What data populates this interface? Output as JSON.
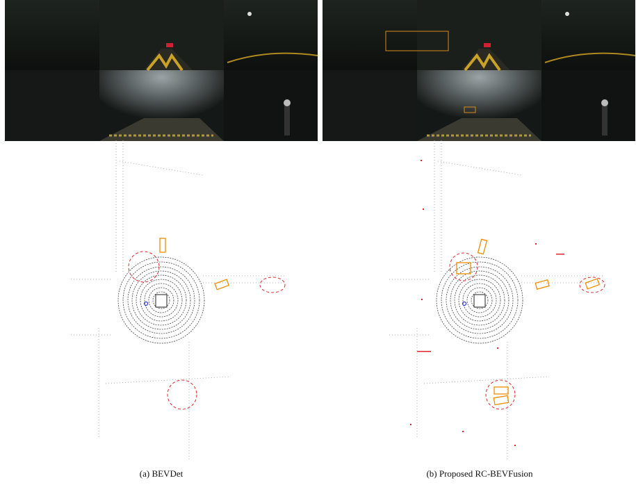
{
  "panels": [
    {
      "caption": "(a) BEVDet"
    },
    {
      "caption": "(b) Proposed RC-BEVFusion"
    }
  ]
}
